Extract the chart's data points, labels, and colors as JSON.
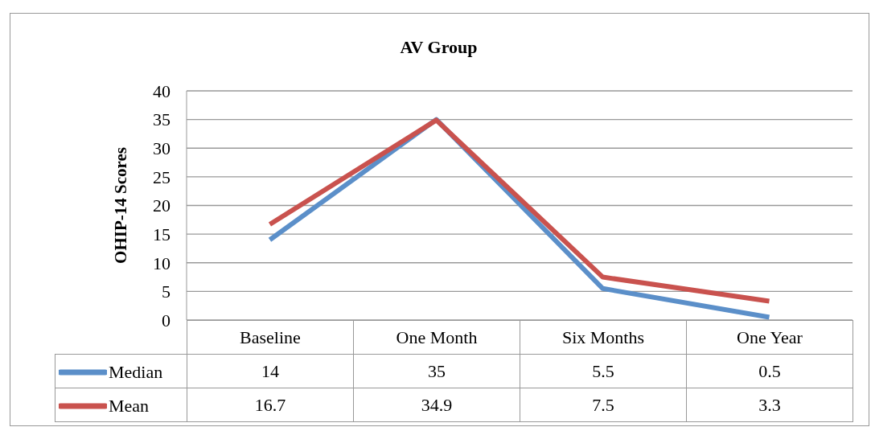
{
  "chart_data": {
    "type": "line",
    "title": "AV Group",
    "ylabel": "OHIP-14 Scores",
    "categories": [
      "Baseline",
      "One Month",
      "Six Months",
      "One Year"
    ],
    "series": [
      {
        "name": "Median",
        "color": "#5b8fc9",
        "values": [
          14,
          35,
          5.5,
          0.5
        ]
      },
      {
        "name": "Mean",
        "color": "#c9524e",
        "values": [
          16.7,
          34.9,
          7.5,
          3.3
        ]
      }
    ],
    "ylim": [
      0,
      40
    ],
    "yticks": [
      0,
      5,
      10,
      15,
      20,
      25,
      30,
      35,
      40
    ],
    "grid": "y",
    "legend": "bottom",
    "data_labels": true,
    "marker": "none",
    "line_style": "solid"
  }
}
